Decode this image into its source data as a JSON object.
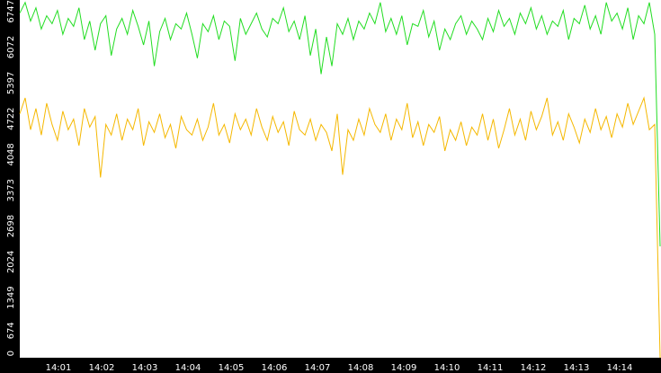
{
  "chart_data": {
    "type": "line",
    "ylim": [
      0,
      6747
    ],
    "yticks": [
      0,
      674,
      1349,
      2024,
      2698,
      3373,
      4048,
      4722,
      5397,
      6072,
      6747
    ],
    "xticks": [
      "14:01",
      "14:02",
      "14:03",
      "14:04",
      "14:05",
      "14:06",
      "14:07",
      "14:08",
      "14:09",
      "14:10",
      "14:11",
      "14:12",
      "14:13",
      "14:14"
    ],
    "series": [
      {
        "color": "#22dd22",
        "values": [
          6500,
          6700,
          6350,
          6600,
          6200,
          6450,
          6300,
          6550,
          6100,
          6400,
          6250,
          6600,
          6000,
          6350,
          5800,
          6300,
          6450,
          5700,
          6200,
          6400,
          6100,
          6550,
          6250,
          5900,
          6350,
          5500,
          6150,
          6400,
          6000,
          6300,
          6200,
          6500,
          6100,
          5650,
          6300,
          6150,
          6450,
          6000,
          6350,
          6250,
          5600,
          6400,
          6100,
          6300,
          6500,
          6200,
          6050,
          6400,
          6300,
          6600,
          6150,
          6350,
          6000,
          6450,
          5700,
          6200,
          5350,
          6050,
          5500,
          6300,
          6100,
          6400,
          6000,
          6350,
          6200,
          6500,
          6300,
          6700,
          6150,
          6400,
          6100,
          6450,
          5900,
          6300,
          6250,
          6550,
          6050,
          6350,
          5800,
          6200,
          6000,
          6300,
          6450,
          6100,
          6350,
          6200,
          6000,
          6400,
          6150,
          6550,
          6250,
          6400,
          6100,
          6500,
          6300,
          6600,
          6200,
          6450,
          6100,
          6350,
          6250,
          6550,
          6000,
          6400,
          6300,
          6650,
          6200,
          6450,
          6100,
          6700,
          6350,
          6500,
          6200,
          6600,
          6000,
          6450,
          6300,
          6700,
          6100,
          2100
        ]
      },
      {
        "color": "#f5b800",
        "values": [
          4600,
          4900,
          4300,
          4700,
          4200,
          4800,
          4400,
          4100,
          4650,
          4300,
          4500,
          4000,
          4700,
          4350,
          4550,
          3400,
          4400,
          4200,
          4600,
          4100,
          4500,
          4300,
          4700,
          4000,
          4450,
          4250,
          4600,
          4150,
          4400,
          3950,
          4550,
          4300,
          4200,
          4500,
          4100,
          4350,
          4800,
          4200,
          4400,
          4050,
          4600,
          4300,
          4500,
          4200,
          4700,
          4350,
          4100,
          4550,
          4250,
          4450,
          4000,
          4650,
          4300,
          4200,
          4500,
          4100,
          4400,
          4250,
          3900,
          4600,
          3450,
          4300,
          4100,
          4500,
          4200,
          4700,
          4400,
          4250,
          4600,
          4100,
          4500,
          4300,
          4800,
          4150,
          4450,
          4000,
          4400,
          4250,
          4550,
          3900,
          4300,
          4100,
          4450,
          4000,
          4350,
          4200,
          4600,
          4100,
          4500,
          3950,
          4300,
          4700,
          4200,
          4500,
          4100,
          4650,
          4300,
          4550,
          4900,
          4200,
          4450,
          4100,
          4600,
          4350,
          4050,
          4500,
          4250,
          4700,
          4300,
          4550,
          4150,
          4600,
          4350,
          4800,
          4400,
          4650,
          4900,
          4300,
          4400,
          0
        ]
      }
    ]
  }
}
